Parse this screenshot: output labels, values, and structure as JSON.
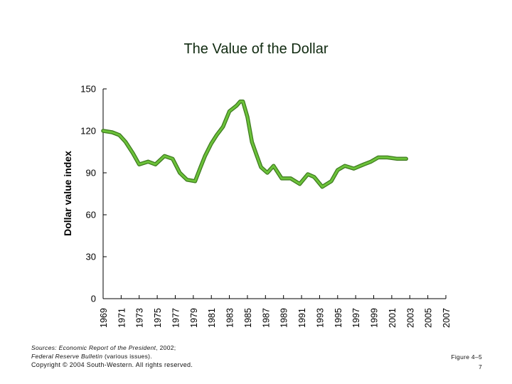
{
  "chart_data": {
    "type": "line",
    "title": "The Value of the Dollar",
    "xlabel": "",
    "ylabel": "Dollar value index",
    "ylim": [
      0,
      150
    ],
    "yticks": [
      0,
      30,
      60,
      90,
      120,
      150
    ],
    "xlim": [
      1969,
      2007
    ],
    "xtick_labels": [
      "1969",
      "1971",
      "1973",
      "1975",
      "1977",
      "1979",
      "1981",
      "1983",
      "1985",
      "1987",
      "1989",
      "1991",
      "1993",
      "1995",
      "1997",
      "1999",
      "2001",
      "2003",
      "2005",
      "2007"
    ],
    "series": [
      {
        "name": "Dollar value index",
        "color": "#6cc23a",
        "x": [
          1969,
          1970,
          1970.8,
          1971.5,
          1972.3,
          1973,
          1974,
          1974.8,
          1975.8,
          1976.7,
          1977.5,
          1978.3,
          1979.2,
          1979.8,
          1980.3,
          1981,
          1981.6,
          1982.3,
          1983,
          1983.8,
          1984.2,
          1984.5,
          1985,
          1985.5,
          1986,
          1986.5,
          1987.2,
          1987.9,
          1988.8,
          1989.8,
          1990.8,
          1991.7,
          1992.4,
          1993.3,
          1994.3,
          1995,
          1995.8,
          1996.8,
          1997.9,
          1998.7,
          1999.5,
          2000.5,
          2001.6,
          2002.6
        ],
        "values": [
          120,
          119,
          117,
          112,
          104,
          96,
          98,
          96,
          102,
          100,
          90,
          85,
          84,
          94,
          102,
          111,
          117,
          123,
          134,
          138,
          141,
          141,
          130,
          112,
          103,
          94,
          90,
          95,
          86,
          86,
          82,
          89,
          87,
          80,
          84,
          92,
          95,
          93,
          96,
          98,
          101,
          101,
          100,
          100
        ]
      }
    ]
  },
  "footer": {
    "source_lead": "Sources: ",
    "source_report": "Economic Report of the President",
    "source_year": ", 2002;",
    "source_bulletin": "Federal Reserve Bulletin",
    "source_issues": " (various issues).",
    "copyright": "Copyright © 2004 South-Western. All rights reserved.",
    "figure": "Figure 4–5",
    "page": "7"
  }
}
